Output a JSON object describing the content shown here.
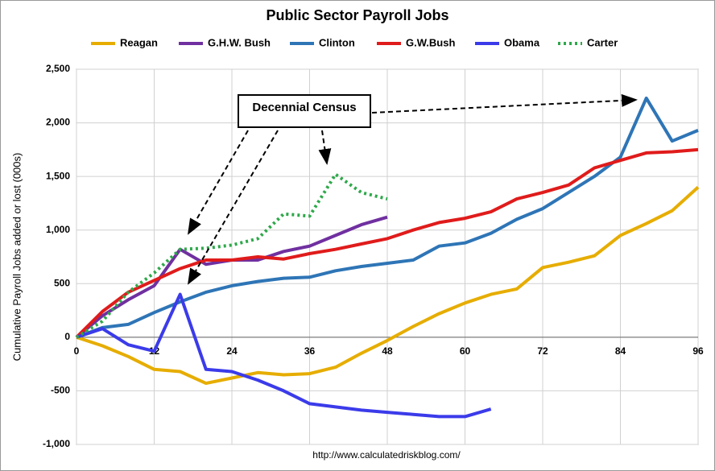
{
  "chart_data": {
    "type": "line",
    "title": "Public Sector Payroll Jobs",
    "y_label": "Cumulative Payroll Jobs added or lost (000s)",
    "annotation": "Decennial Census",
    "source": "http://www.calculatedriskblog.com/",
    "x": [
      0,
      4,
      8,
      12,
      16,
      20,
      24,
      28,
      32,
      36,
      40,
      44,
      48,
      52,
      56,
      60,
      64,
      68,
      72,
      76,
      80,
      84,
      88,
      92,
      96
    ],
    "series": [
      {
        "name": "Reagan",
        "color": "#e6ad00",
        "style": "solid",
        "values": [
          0,
          -80,
          -180,
          -300,
          -320,
          -430,
          -380,
          -330,
          -350,
          -340,
          -280,
          -150,
          -30,
          100,
          220,
          320,
          400,
          450,
          650,
          700,
          760,
          950,
          1060,
          1180,
          1400
        ]
      },
      {
        "name": "G.H.W. Bush",
        "color": "#7030a0",
        "style": "solid",
        "values": [
          0,
          200,
          350,
          480,
          820,
          680,
          720,
          720,
          800,
          850,
          950,
          1050,
          1120,
          null,
          null,
          null,
          null,
          null,
          null,
          null,
          null,
          null,
          null,
          null,
          null
        ]
      },
      {
        "name": "Clinton",
        "color": "#2e75b6",
        "style": "solid",
        "values": [
          0,
          90,
          120,
          230,
          330,
          420,
          480,
          520,
          550,
          560,
          620,
          660,
          690,
          720,
          850,
          880,
          970,
          1100,
          1200,
          1350,
          1500,
          1680,
          2230,
          1830,
          1930
        ]
      },
      {
        "name": "G.W.Bush",
        "color": "#e01b1b",
        "style": "solid",
        "values": [
          0,
          240,
          420,
          530,
          640,
          720,
          720,
          750,
          730,
          780,
          820,
          870,
          920,
          1000,
          1070,
          1110,
          1170,
          1290,
          1350,
          1420,
          1580,
          1650,
          1720,
          1730,
          1750
        ]
      },
      {
        "name": "Obama",
        "color": "#3b3bea",
        "style": "solid",
        "values": [
          0,
          80,
          -70,
          -130,
          400,
          -300,
          -320,
          -400,
          -500,
          -620,
          -650,
          -680,
          -700,
          -720,
          -740,
          -740,
          -670,
          null,
          null,
          null,
          null,
          null,
          null,
          null,
          null
        ]
      },
      {
        "name": "Carter",
        "color": "#2ea84a",
        "style": "dotted",
        "values": [
          0,
          150,
          420,
          600,
          820,
          830,
          860,
          920,
          1150,
          1130,
          1520,
          1350,
          1290,
          null,
          null,
          null,
          null,
          null,
          null,
          null,
          null,
          null,
          null,
          null,
          null
        ]
      }
    ],
    "xlim": [
      0,
      96
    ],
    "xticks": [
      0,
      12,
      24,
      36,
      48,
      60,
      72,
      84,
      96
    ],
    "ylim": [
      -1000,
      2500
    ],
    "yticks": [
      {
        "value": -1000,
        "label": "-1,000"
      },
      -500,
      0,
      500,
      {
        "value": 1000,
        "label": "1,000"
      },
      {
        "value": 1500,
        "label": "1,500"
      },
      {
        "value": 2000,
        "label": "2,000"
      },
      {
        "value": 2500,
        "label": "2,500"
      }
    ],
    "grid": true,
    "legend": "top"
  }
}
